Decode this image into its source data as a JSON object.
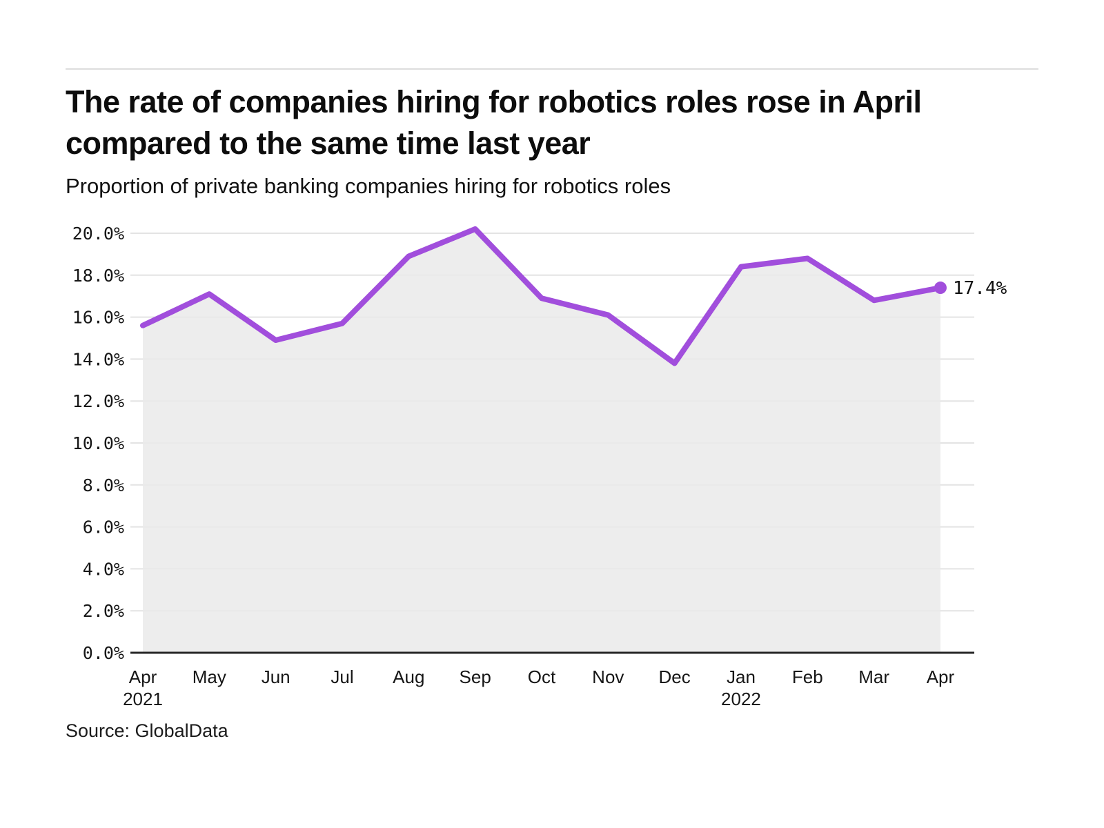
{
  "header": {
    "title": "The rate of companies hiring for robotics roles rose in April compared to the same time last year",
    "subtitle": "Proportion of private banking companies hiring for robotics roles"
  },
  "source_text": "Source: GlobalData",
  "chart_data": {
    "type": "line",
    "title": "Proportion of private banking companies hiring for robotics roles",
    "categories": [
      {
        "month": "Apr",
        "year": "2021"
      },
      {
        "month": "May"
      },
      {
        "month": "Jun"
      },
      {
        "month": "Jul"
      },
      {
        "month": "Aug"
      },
      {
        "month": "Sep"
      },
      {
        "month": "Oct"
      },
      {
        "month": "Nov"
      },
      {
        "month": "Dec"
      },
      {
        "month": "Jan",
        "year": "2022"
      },
      {
        "month": "Feb"
      },
      {
        "month": "Mar"
      },
      {
        "month": "Apr"
      }
    ],
    "series": [
      {
        "name": "Proportion of companies hiring for robotics roles",
        "values": [
          15.6,
          17.1,
          14.9,
          15.7,
          18.9,
          20.2,
          16.9,
          16.1,
          13.8,
          18.4,
          18.8,
          16.8,
          17.4
        ]
      }
    ],
    "end_label": "17.4%",
    "ylim": [
      0,
      20
    ],
    "yticks": [
      0,
      2,
      4,
      6,
      8,
      10,
      12,
      14,
      16,
      18,
      20
    ],
    "ytick_labels": [
      "0.0%",
      "2.0%",
      "4.0%",
      "6.0%",
      "8.0%",
      "10.0%",
      "12.0%",
      "14.0%",
      "16.0%",
      "18.0%",
      "20.0%"
    ],
    "grid": "horizontal",
    "legend": "none",
    "line_color": "#a14edc",
    "area_color": "#ededed",
    "marker_on_last_point": true
  }
}
